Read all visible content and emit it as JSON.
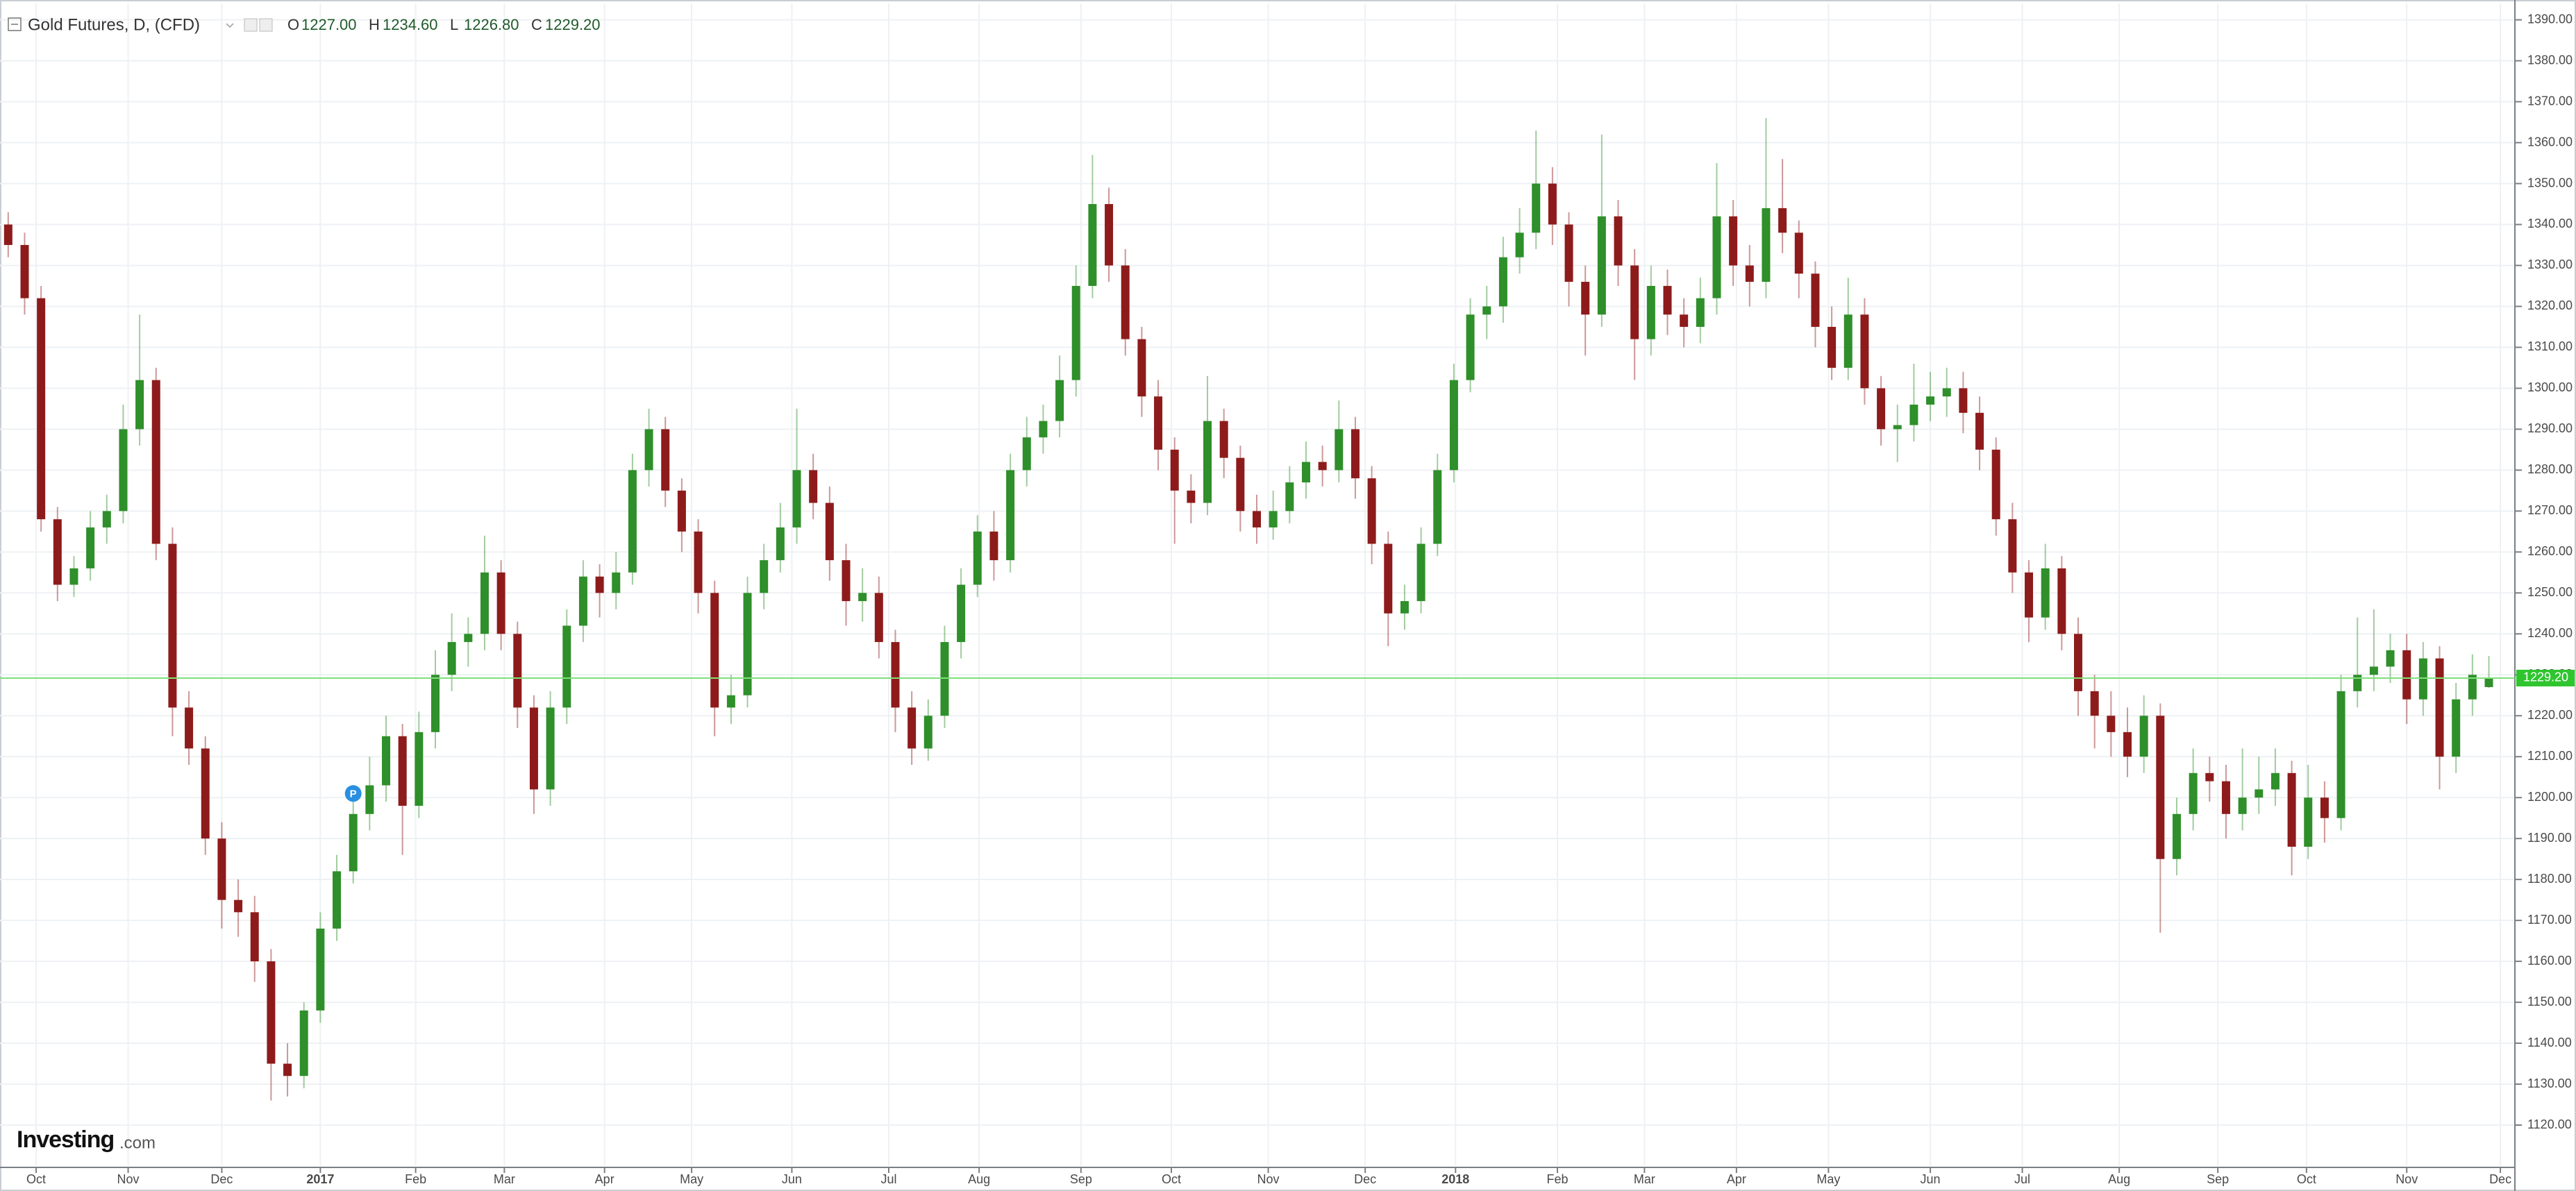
{
  "header": {
    "title": "Gold Futures, D, (CFD)",
    "ohlc": [
      {
        "key": "O",
        "text": "1227.00"
      },
      {
        "key": "H",
        "text": "1234.60"
      },
      {
        "key": "L",
        "text": "1226.80"
      },
      {
        "key": "C",
        "text": "1229.20"
      }
    ]
  },
  "logo": {
    "name": "Investing",
    "suffix": ".com"
  },
  "chart_data": {
    "type": "candlestick",
    "up_color": "#2f8f2a",
    "down_color": "#8e1b1b",
    "grid": true,
    "open": [
      1340,
      1335,
      1322,
      1268,
      1252,
      1256,
      1266,
      1270,
      1290,
      1302,
      1262,
      1222,
      1212,
      1190,
      1175,
      1172,
      1160,
      1135,
      1132,
      1148,
      1168,
      1182,
      1196,
      1203,
      1215,
      1198,
      1216,
      1230,
      1238,
      1240,
      1255,
      1240,
      1222,
      1202,
      1222,
      1242,
      1254,
      1250,
      1255,
      1280,
      1290,
      1275,
      1265,
      1250,
      1222,
      1225,
      1250,
      1258,
      1266,
      1280,
      1272,
      1258,
      1248,
      1250,
      1238,
      1222,
      1212,
      1220,
      1238,
      1252,
      1265,
      1258,
      1280,
      1288,
      1292,
      1302,
      1325,
      1345,
      1330,
      1312,
      1298,
      1285,
      1275,
      1272,
      1292,
      1283,
      1270,
      1266,
      1270,
      1277,
      1282,
      1280,
      1290,
      1278,
      1262,
      1245,
      1248,
      1262,
      1280,
      1302,
      1318,
      1320,
      1332,
      1338,
      1350,
      1340,
      1326,
      1318,
      1342,
      1330,
      1312,
      1325,
      1318,
      1315,
      1322,
      1342,
      1330,
      1326,
      1344,
      1338,
      1328,
      1315,
      1305,
      1318,
      1300,
      1290,
      1291,
      1296,
      1298,
      1300,
      1294,
      1285,
      1268,
      1255,
      1244,
      1256,
      1240,
      1226,
      1220,
      1216,
      1210,
      1220,
      1185,
      1196,
      1206,
      1204,
      1196,
      1200,
      1202,
      1206,
      1188,
      1200,
      1195,
      1226,
      1230,
      1232,
      1236,
      1224,
      1234,
      1210,
      1224,
      1227
    ],
    "high": [
      1343,
      1338,
      1325,
      1271,
      1259,
      1270,
      1274,
      1296,
      1318,
      1305,
      1266,
      1226,
      1215,
      1194,
      1180,
      1176,
      1163,
      1140,
      1150,
      1172,
      1186,
      1200,
      1210,
      1220,
      1218,
      1221,
      1236,
      1245,
      1244,
      1264,
      1258,
      1243,
      1225,
      1226,
      1246,
      1258,
      1257,
      1260,
      1284,
      1295,
      1293,
      1278,
      1268,
      1253,
      1230,
      1254,
      1262,
      1272,
      1295,
      1284,
      1276,
      1262,
      1256,
      1254,
      1241,
      1226,
      1224,
      1242,
      1256,
      1269,
      1270,
      1284,
      1293,
      1296,
      1308,
      1330,
      1357,
      1349,
      1334,
      1315,
      1302,
      1288,
      1279,
      1303,
      1295,
      1286,
      1274,
      1275,
      1281,
      1287,
      1286,
      1297,
      1293,
      1281,
      1265,
      1252,
      1266,
      1284,
      1306,
      1322,
      1325,
      1337,
      1344,
      1363,
      1354,
      1343,
      1330,
      1362,
      1346,
      1334,
      1330,
      1329,
      1322,
      1327,
      1355,
      1346,
      1335,
      1366,
      1356,
      1341,
      1331,
      1320,
      1327,
      1322,
      1303,
      1296,
      1306,
      1304,
      1305,
      1304,
      1298,
      1288,
      1272,
      1258,
      1262,
      1259,
      1244,
      1230,
      1226,
      1222,
      1225,
      1223,
      1200,
      1212,
      1210,
      1208,
      1212,
      1210,
      1212,
      1209,
      1208,
      1204,
      1230,
      1244,
      1246,
      1240,
      1240,
      1238,
      1237,
      1228,
      1235,
      1234.6
    ],
    "low": [
      1332,
      1318,
      1265,
      1248,
      1249,
      1253,
      1262,
      1267,
      1286,
      1258,
      1215,
      1208,
      1186,
      1168,
      1166,
      1155,
      1126,
      1127,
      1129,
      1145,
      1165,
      1179,
      1192,
      1199,
      1186,
      1195,
      1212,
      1226,
      1232,
      1236,
      1236,
      1217,
      1196,
      1198,
      1218,
      1238,
      1244,
      1246,
      1252,
      1276,
      1271,
      1260,
      1245,
      1215,
      1218,
      1222,
      1246,
      1255,
      1262,
      1268,
      1253,
      1242,
      1243,
      1234,
      1216,
      1208,
      1209,
      1217,
      1234,
      1249,
      1253,
      1255,
      1276,
      1284,
      1288,
      1298,
      1322,
      1326,
      1308,
      1293,
      1280,
      1262,
      1267,
      1269,
      1278,
      1265,
      1262,
      1263,
      1267,
      1273,
      1276,
      1277,
      1273,
      1257,
      1237,
      1241,
      1245,
      1259,
      1277,
      1299,
      1312,
      1316,
      1328,
      1334,
      1335,
      1320,
      1308,
      1315,
      1325,
      1302,
      1308,
      1313,
      1310,
      1311,
      1318,
      1325,
      1320,
      1322,
      1333,
      1322,
      1310,
      1302,
      1302,
      1296,
      1286,
      1282,
      1287,
      1292,
      1293,
      1289,
      1280,
      1264,
      1250,
      1238,
      1241,
      1236,
      1220,
      1212,
      1210,
      1205,
      1206,
      1167,
      1181,
      1192,
      1199,
      1190,
      1192,
      1196,
      1198,
      1181,
      1185,
      1189,
      1192,
      1222,
      1226,
      1228,
      1218,
      1220,
      1202,
      1206,
      1220,
      1226.8
    ],
    "close": [
      1335,
      1322,
      1268,
      1252,
      1256,
      1266,
      1270,
      1290,
      1302,
      1262,
      1222,
      1212,
      1190,
      1175,
      1172,
      1160,
      1135,
      1132,
      1148,
      1168,
      1182,
      1196,
      1203,
      1215,
      1198,
      1216,
      1230,
      1238,
      1240,
      1255,
      1240,
      1222,
      1202,
      1222,
      1242,
      1254,
      1250,
      1255,
      1280,
      1290,
      1275,
      1265,
      1250,
      1222,
      1225,
      1250,
      1258,
      1266,
      1280,
      1272,
      1258,
      1248,
      1250,
      1238,
      1222,
      1212,
      1220,
      1238,
      1252,
      1265,
      1258,
      1280,
      1288,
      1292,
      1302,
      1325,
      1345,
      1330,
      1312,
      1298,
      1285,
      1275,
      1272,
      1292,
      1283,
      1270,
      1266,
      1270,
      1277,
      1282,
      1280,
      1290,
      1278,
      1262,
      1245,
      1248,
      1262,
      1280,
      1302,
      1318,
      1320,
      1332,
      1338,
      1350,
      1340,
      1326,
      1318,
      1342,
      1330,
      1312,
      1325,
      1318,
      1315,
      1322,
      1342,
      1330,
      1326,
      1344,
      1338,
      1328,
      1315,
      1305,
      1318,
      1300,
      1290,
      1291,
      1296,
      1298,
      1300,
      1294,
      1285,
      1268,
      1255,
      1244,
      1256,
      1240,
      1226,
      1220,
      1216,
      1210,
      1220,
      1185,
      1196,
      1206,
      1204,
      1196,
      1200,
      1202,
      1206,
      1188,
      1200,
      1195,
      1226,
      1230,
      1232,
      1236,
      1224,
      1234,
      1210,
      1224,
      1230,
      1229.2
    ],
    "last_price": {
      "value": 1229.2,
      "label": "1229.20"
    },
    "annotations": [
      {
        "text": "P",
        "x": 21,
        "y": 1201
      }
    ],
    "xlim": [
      -0.5,
      152.5
    ],
    "xticks": [
      {
        "value": 1.7,
        "label": "Oct"
      },
      {
        "value": 7.3,
        "label": "Nov"
      },
      {
        "value": 13,
        "label": "Dec"
      },
      {
        "value": 19,
        "label": "2017"
      },
      {
        "value": 24.8,
        "label": "Feb"
      },
      {
        "value": 30.2,
        "label": "Mar"
      },
      {
        "value": 36.3,
        "label": "Apr"
      },
      {
        "value": 41.6,
        "label": "May"
      },
      {
        "value": 47.7,
        "label": "Jun"
      },
      {
        "value": 53.6,
        "label": "Jul"
      },
      {
        "value": 59.1,
        "label": "Aug"
      },
      {
        "value": 65.3,
        "label": "Sep"
      },
      {
        "value": 70.8,
        "label": "Oct"
      },
      {
        "value": 76.7,
        "label": "Nov"
      },
      {
        "value": 82.6,
        "label": "Dec"
      },
      {
        "value": 88.1,
        "label": "2018"
      },
      {
        "value": 94.3,
        "label": "Feb"
      },
      {
        "value": 99.6,
        "label": "Mar"
      },
      {
        "value": 105.2,
        "label": "Apr"
      },
      {
        "value": 110.8,
        "label": "May"
      },
      {
        "value": 117,
        "label": "Jun"
      },
      {
        "value": 122.6,
        "label": "Jul"
      },
      {
        "value": 128.5,
        "label": "Aug"
      },
      {
        "value": 134.5,
        "label": "Sep"
      },
      {
        "value": 139.9,
        "label": "Oct"
      },
      {
        "value": 146,
        "label": "Nov"
      },
      {
        "value": 151.7,
        "label": "Dec"
      }
    ],
    "ylim": [
      1110,
      1394
    ],
    "yticks": [
      {
        "value": 1120,
        "label": "1120.00"
      },
      {
        "value": 1130,
        "label": "1130.00"
      },
      {
        "value": 1140,
        "label": "1140.00"
      },
      {
        "value": 1150,
        "label": "1150.00"
      },
      {
        "value": 1160,
        "label": "1160.00"
      },
      {
        "value": 1170,
        "label": "1170.00"
      },
      {
        "value": 1180,
        "label": "1180.00"
      },
      {
        "value": 1190,
        "label": "1190.00"
      },
      {
        "value": 1200,
        "label": "1200.00"
      },
      {
        "value": 1210,
        "label": "1210.00"
      },
      {
        "value": 1220,
        "label": "1220.00"
      },
      {
        "value": 1230,
        "label": "1230.00"
      },
      {
        "value": 1240,
        "label": "1240.00"
      },
      {
        "value": 1250,
        "label": "1250.00"
      },
      {
        "value": 1260,
        "label": "1260.00"
      },
      {
        "value": 1270,
        "label": "1270.00"
      },
      {
        "value": 1280,
        "label": "1280.00"
      },
      {
        "value": 1290,
        "label": "1290.00"
      },
      {
        "value": 1300,
        "label": "1300.00"
      },
      {
        "value": 1310,
        "label": "1310.00"
      },
      {
        "value": 1320,
        "label": "1320.00"
      },
      {
        "value": 1330,
        "label": "1330.00"
      },
      {
        "value": 1340,
        "label": "1340.00"
      },
      {
        "value": 1350,
        "label": "1350.00"
      },
      {
        "value": 1360,
        "label": "1360.00"
      },
      {
        "value": 1370,
        "label": "1370.00"
      },
      {
        "value": 1380,
        "label": "1380.00"
      },
      {
        "value": 1390,
        "label": "1390.00"
      }
    ]
  }
}
